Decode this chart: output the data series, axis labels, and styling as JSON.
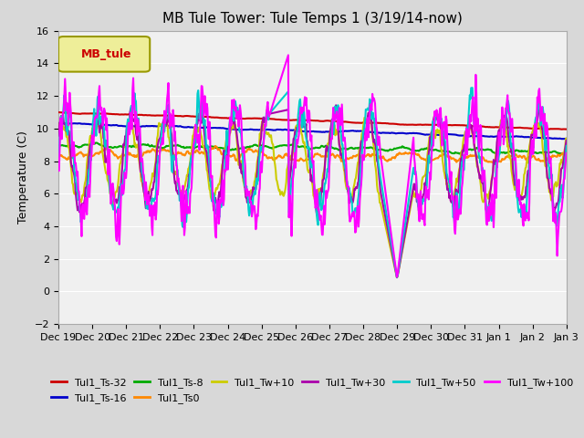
{
  "title": "MB Tule Tower: Tule Temps 1 (3/19/14-now)",
  "ylabel": "Temperature (C)",
  "ylim": [
    -2,
    16
  ],
  "yticks": [
    -2,
    0,
    2,
    4,
    6,
    8,
    10,
    12,
    14,
    16
  ],
  "xlabel_dates": [
    "Dec 19",
    "Dec 20",
    "Dec 21",
    "Dec 22",
    "Dec 23",
    "Dec 24",
    "Dec 25",
    "Dec 26",
    "Dec 27",
    "Dec 28",
    "Dec 29",
    "Dec 30",
    "Dec 31",
    "Jan 1",
    "Jan 2",
    "Jan 3"
  ],
  "legend_label": "MB_tule",
  "series": {
    "Tul1_Ts-32": {
      "color": "#cc0000",
      "lw": 1.5
    },
    "Tul1_Ts-16": {
      "color": "#0000cc",
      "lw": 1.5
    },
    "Tul1_Ts-8": {
      "color": "#00aa00",
      "lw": 1.5
    },
    "Tul1_Ts0": {
      "color": "#ff8800",
      "lw": 1.5
    },
    "Tul1_Tw+10": {
      "color": "#cccc00",
      "lw": 1.5
    },
    "Tul1_Tw+30": {
      "color": "#aa00aa",
      "lw": 1.5
    },
    "Tul1_Tw+50": {
      "color": "#00cccc",
      "lw": 1.5
    },
    "Tul1_Tw+100": {
      "color": "#ff00ff",
      "lw": 1.5
    }
  },
  "bg_color": "#d8d8d8",
  "plot_bg": "#f0f0f0"
}
